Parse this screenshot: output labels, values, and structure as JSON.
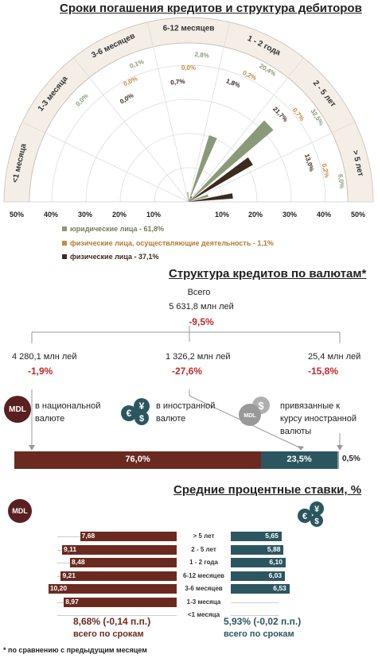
{
  "section1": {
    "title": "Сроки погашения кредитов и структура дебиторов",
    "scale_left": [
      "50%",
      "40%",
      "30%",
      "20%",
      "10%"
    ],
    "scale_right": [
      "10%",
      "20%",
      "30%",
      "40%",
      "50%"
    ],
    "legend": [
      {
        "label": "юридические лица - 61,8%",
        "color": "#8a9a78"
      },
      {
        "label": "физические лица, осуществляющие деятельность - 1,1%",
        "color": "#c9893e"
      },
      {
        "label": "физические лица - 37,1%",
        "color": "#3d2a20"
      }
    ]
  },
  "chart_data": [
    {
      "type": "radial-bar",
      "categories": [
        "<1 месяца",
        "1-3 месяца",
        "3-6 месяцев",
        "6-12 месяцев",
        "1 - 2 года",
        "2 - 5 лет",
        "> 5 лет"
      ],
      "series": [
        {
          "name": "юридические лица - 61,8%",
          "values": [
            null,
            0.0,
            0.1,
            2.8,
            20.4,
            32.5,
            6.0
          ],
          "labels": [
            "",
            "0,0%",
            "0,1%",
            "2,8%",
            "20,4%",
            "32,5%",
            "6,0%"
          ]
        },
        {
          "name": "физические лица, осуществляющие деятельность - 1,1%",
          "values": [
            null,
            null,
            0.0,
            0.0,
            0.2,
            0.7,
            0.2
          ],
          "labels": [
            "",
            "",
            "0,0%",
            "0,0%",
            "0,2%",
            "0,7%",
            "0,2%"
          ]
        },
        {
          "name": "физические лица - 37,1%",
          "values": [
            null,
            null,
            0.0,
            0.7,
            1.8,
            21.7,
            13.0
          ],
          "labels": [
            "",
            "",
            "0,0%",
            "0,7%",
            "1,8%",
            "21,7%",
            "13,0%"
          ]
        }
      ],
      "range": [
        0,
        50
      ]
    },
    {
      "type": "stacked-bar",
      "categories": [
        "в национальной валюте",
        "в иностранной валюте",
        "привязанные к курсу иностранной валюты"
      ],
      "values": [
        76.0,
        23.5,
        0.5
      ],
      "labels": [
        "76,0%",
        "23,5%",
        "0,5%"
      ]
    },
    {
      "type": "bar",
      "title": "Средние процентные ставки, %",
      "categories": [
        "> 5 лет",
        "2 - 5 лет",
        "1 - 2 года",
        "6-12 месяцев",
        "3-6 месяцев",
        "1-3 месяца",
        "<1 месяца"
      ],
      "series": [
        {
          "name": "MDL",
          "values": [
            7.68,
            9.11,
            8.48,
            9.21,
            10.2,
            8.97,
            null
          ],
          "labels": [
            "7,68",
            "9,11",
            "8,48",
            "9,21",
            "10,20",
            "8,97",
            ""
          ]
        },
        {
          "name": "foreign",
          "values": [
            5.65,
            5.88,
            6.1,
            6.03,
            6.53,
            null,
            null
          ],
          "labels": [
            "5,65",
            "5,88",
            "6,10",
            "6,03",
            "6,53",
            "",
            ""
          ]
        }
      ]
    }
  ],
  "section2": {
    "title": "Структура кредитов по валютам*",
    "total_label": "Всего",
    "total_value": "5 631,8 млн лей",
    "total_change": "-9,5%",
    "groups": [
      {
        "value": "4 280,1 млн лей",
        "change": "-1,9%",
        "label1": "в национальной",
        "label2": "валюте"
      },
      {
        "value": "1 326,2 млн лей",
        "change": "-27,6%",
        "label1": "в  иностранной",
        "label2": "валюте"
      },
      {
        "value": "25,4 млн лей",
        "change": "-15,8%",
        "label1": "привязанные к",
        "label2": "курсу иностранной",
        "label3": "валюты"
      }
    ],
    "icon_mdl": "MDL",
    "icon_mdl_small": "MDL"
  },
  "section3": {
    "title": "Средние процентные ставки, %",
    "icon_mdl": "MDL",
    "summary_left_value": "8,68%",
    "summary_left_change": " (-0,14 п.п.)",
    "summary_left_label": "всего по срокам",
    "summary_right_value": "5,93%",
    "summary_right_change": " (-0,02 п.п.)",
    "summary_right_label": "всего по срокам"
  },
  "footnote": "* по сравнению с предыдущим месяцем",
  "colors": {
    "green": "#8a9a78",
    "orange": "#c9893e",
    "dark": "#3d2a20",
    "mdl": "#6b2a20",
    "teal": "#2b5660",
    "red": "#c0282d"
  }
}
